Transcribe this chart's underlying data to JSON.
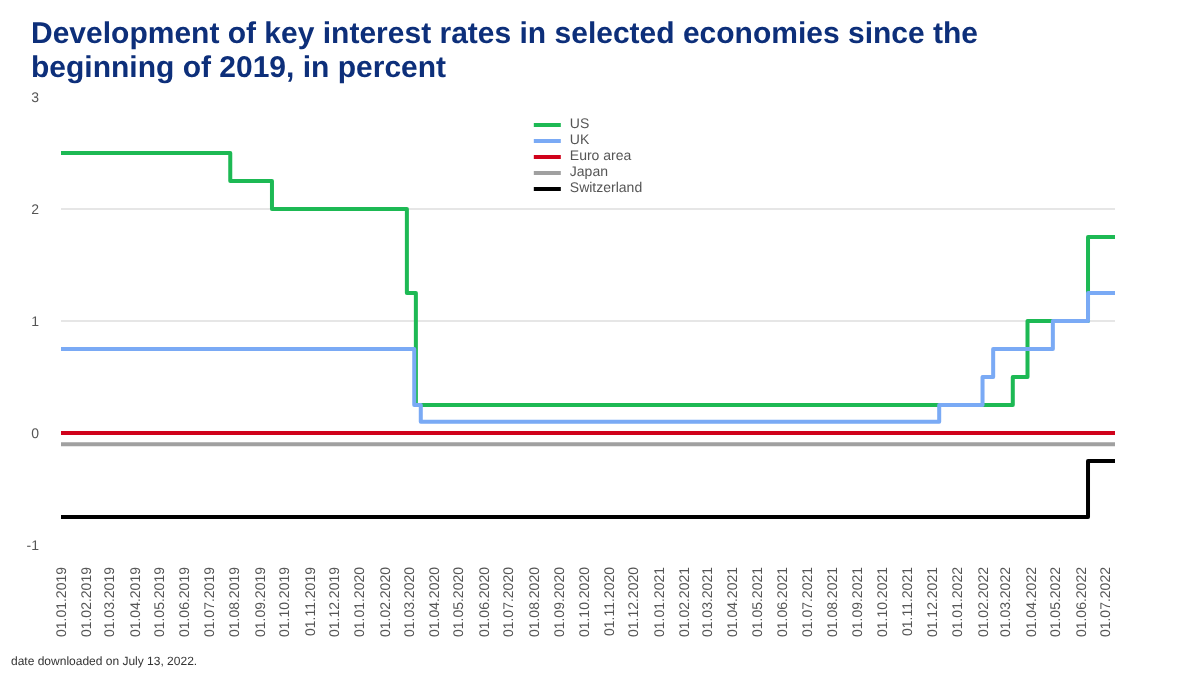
{
  "chart_data": {
    "type": "step",
    "title": "Development of key interest rates in selected economies since the beginning of 2019, in percent",
    "annotations": [
      "date downloaded on July 13, 2022."
    ],
    "xlim": [
      "2019-01-01",
      "2022-07-13"
    ],
    "xticks": [
      {
        "value": "2019-01-01",
        "label": "01.01.2019"
      },
      {
        "value": "2019-02-01",
        "label": "01.02.2019"
      },
      {
        "value": "2019-03-01",
        "label": "01.03.2019"
      },
      {
        "value": "2019-04-01",
        "label": "01.04.2019"
      },
      {
        "value": "2019-05-01",
        "label": "01.05.2019"
      },
      {
        "value": "2019-06-01",
        "label": "01.06.2019"
      },
      {
        "value": "2019-07-01",
        "label": "01.07.2019"
      },
      {
        "value": "2019-08-01",
        "label": "01.08.2019"
      },
      {
        "value": "2019-09-01",
        "label": "01.09.2019"
      },
      {
        "value": "2019-10-01",
        "label": "01.10.2019"
      },
      {
        "value": "2019-11-01",
        "label": "01.11.2019"
      },
      {
        "value": "2019-12-01",
        "label": "01.12.2019"
      },
      {
        "value": "2020-01-01",
        "label": "01.01.2020"
      },
      {
        "value": "2020-02-01",
        "label": "01.02.2020"
      },
      {
        "value": "2020-03-01",
        "label": "01.03.2020"
      },
      {
        "value": "2020-04-01",
        "label": "01.04.2020"
      },
      {
        "value": "2020-05-01",
        "label": "01.05.2020"
      },
      {
        "value": "2020-06-01",
        "label": "01.06.2020"
      },
      {
        "value": "2020-07-01",
        "label": "01.07.2020"
      },
      {
        "value": "2020-08-01",
        "label": "01.08.2020"
      },
      {
        "value": "2020-09-01",
        "label": "01.09.2020"
      },
      {
        "value": "2020-10-01",
        "label": "01.10.2020"
      },
      {
        "value": "2020-11-01",
        "label": "01.11.2020"
      },
      {
        "value": "2020-12-01",
        "label": "01.12.2020"
      },
      {
        "value": "2021-01-01",
        "label": "01.01.2021"
      },
      {
        "value": "2021-02-01",
        "label": "01.02.2021"
      },
      {
        "value": "2021-03-01",
        "label": "01.03.2021"
      },
      {
        "value": "2021-04-01",
        "label": "01.04.2021"
      },
      {
        "value": "2021-05-01",
        "label": "01.05.2021"
      },
      {
        "value": "2021-06-01",
        "label": "01.06.2021"
      },
      {
        "value": "2021-07-01",
        "label": "01.07.2021"
      },
      {
        "value": "2021-08-01",
        "label": "01.08.2021"
      },
      {
        "value": "2021-09-01",
        "label": "01.09.2021"
      },
      {
        "value": "2021-10-01",
        "label": "01.10.2021"
      },
      {
        "value": "2021-11-01",
        "label": "01.11.2021"
      },
      {
        "value": "2021-12-01",
        "label": "01.12.2021"
      },
      {
        "value": "2022-01-01",
        "label": "01.01.2022"
      },
      {
        "value": "2022-02-01",
        "label": "01.02.2022"
      },
      {
        "value": "2022-03-01",
        "label": "01.03.2022"
      },
      {
        "value": "2022-04-01",
        "label": "01.04.2022"
      },
      {
        "value": "2022-05-01",
        "label": "01.05.2022"
      },
      {
        "value": "2022-06-01",
        "label": "01.06.2022"
      },
      {
        "value": "2022-07-01",
        "label": "01.07.2022"
      }
    ],
    "ylim": [
      -1,
      3
    ],
    "yticks": [
      -1,
      0,
      1,
      2,
      3
    ],
    "grid": "y",
    "legend": "top",
    "series": [
      {
        "name": "US",
        "color": "#1db954",
        "x": [
          "2019-01-01",
          "2019-07-27",
          "2019-09-16",
          "2020-02-28",
          "2020-03-10",
          "2022-03-10",
          "2022-03-28",
          "2022-06-10",
          "2022-07-13"
        ],
        "values": [
          2.5,
          2.25,
          2.0,
          1.25,
          0.25,
          0.5,
          1.0,
          1.75,
          1.75
        ]
      },
      {
        "name": "UK",
        "color": "#7aaaf5",
        "x": [
          "2019-01-01",
          "2020-03-08",
          "2020-03-16",
          "2021-12-10",
          "2022-02-01",
          "2022-02-14",
          "2022-04-28",
          "2022-06-10",
          "2022-07-13"
        ],
        "values": [
          0.75,
          0.25,
          0.1,
          0.25,
          0.5,
          0.75,
          1.0,
          1.25,
          1.25
        ]
      },
      {
        "name": "Euro area",
        "color": "#d0021b",
        "x": [
          "2019-01-01",
          "2022-07-13"
        ],
        "values": [
          0,
          0
        ]
      },
      {
        "name": "Japan",
        "color": "#a0a0a0",
        "x": [
          "2019-01-01",
          "2022-07-13"
        ],
        "values": [
          -0.1,
          -0.1
        ]
      },
      {
        "name": "Switzerland",
        "color": "#000000",
        "x": [
          "2019-01-01",
          "2022-06-10",
          "2022-07-13"
        ],
        "values": [
          -0.75,
          -0.25,
          -0.25
        ]
      }
    ]
  }
}
